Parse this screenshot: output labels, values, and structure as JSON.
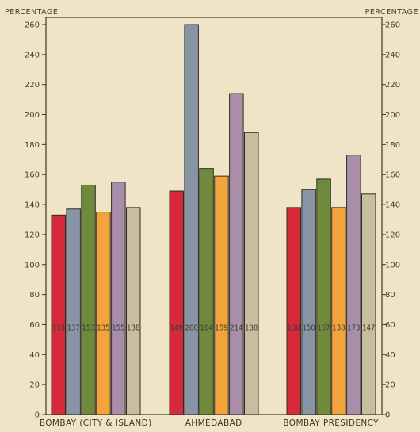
{
  "chart_data": {
    "type": "bar",
    "ylabel_left": "Percentage",
    "ylabel_right": "Percentage",
    "ylim": [
      0,
      260
    ],
    "yticks": [
      0,
      20,
      40,
      60,
      80,
      100,
      120,
      140,
      160,
      180,
      200,
      220,
      240,
      260
    ],
    "categories": [
      "Bombay (City & Island)",
      "Ahmedabad",
      "Bombay Presidency"
    ],
    "series": [
      {
        "color": "#d62a3c",
        "values": [
          133,
          149,
          138
        ],
        "labels": [
          "133",
          "149",
          "138"
        ]
      },
      {
        "color": "#8895a6",
        "values": [
          137,
          260,
          150
        ],
        "labels": [
          "137",
          "260",
          "150"
        ]
      },
      {
        "color": "#6f8a3a",
        "values": [
          153,
          164,
          157
        ],
        "labels": [
          "153",
          "164",
          "157"
        ]
      },
      {
        "color": "#f2a43a",
        "values": [
          135,
          159,
          138
        ],
        "labels": [
          "135",
          "159",
          "138"
        ]
      },
      {
        "color": "#a88ea8",
        "values": [
          155,
          214,
          173
        ],
        "labels": [
          "155",
          "214",
          "173"
        ]
      },
      {
        "color": "#c9bda0",
        "values": [
          138,
          188,
          147
        ],
        "labels": [
          "138",
          "188",
          "147"
        ]
      }
    ],
    "grid": false,
    "legend": "none"
  }
}
